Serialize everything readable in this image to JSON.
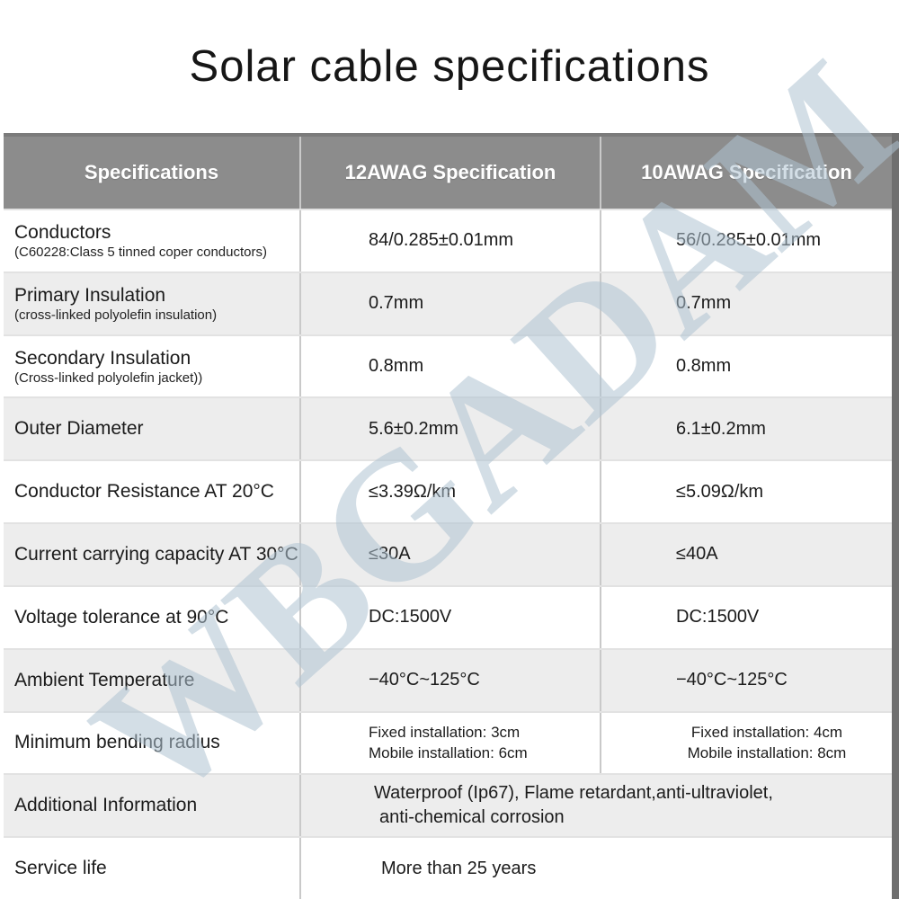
{
  "title": "Solar cable specifications",
  "watermark": "WBGADAM",
  "colors": {
    "header_bg": "#8c8c8c",
    "header_top": "#7b7b7b",
    "row_alt": "#ededed",
    "row_white": "#ffffff",
    "divider": "#c9c9c9",
    "row_line": "#e2e2e2",
    "edge_bar": "#6f6f6f",
    "text": "#1b1b1b",
    "header_text": "#ffffff"
  },
  "table": {
    "headers": [
      "Specifications",
      "12AWAG Specification",
      "10AWAG Specification"
    ],
    "rows": [
      {
        "label": "Conductors",
        "sublabel": "(C60228:Class 5 tinned coper conductors)",
        "awg12": "84/0.285±0.01mm",
        "awg10": "56/0.285±0.01mm"
      },
      {
        "label": "Primary Insulation",
        "sublabel": "(cross-linked polyolefin insulation)",
        "awg12": "0.7mm",
        "awg10": "0.7mm"
      },
      {
        "label": "Secondary Insulation",
        "sublabel": "(Cross-linked polyolefin jacket))",
        "awg12": "0.8mm",
        "awg10": "0.8mm"
      },
      {
        "label": "Outer Diameter",
        "awg12": "5.6±0.2mm",
        "awg10": "6.1±0.2mm"
      },
      {
        "label": "Conductor Resistance AT 20°C",
        "awg12": "≤3.39Ω/km",
        "awg10": "≤5.09Ω/km"
      },
      {
        "label": "Current carrying capacity AT 30°C",
        "awg12": "≤30A",
        "awg10": "≤40A"
      },
      {
        "label": "Voltage tolerance at 90°C",
        "awg12": "DC:1500V",
        "awg10": "DC:1500V"
      },
      {
        "label": "Ambient Temperature",
        "awg12": "−40°C~125°C",
        "awg10": "−40°C~125°C"
      },
      {
        "label": "Minimum bending radius",
        "awg12_lines": [
          "Fixed installation: 3cm",
          "Mobile installation: 6cm"
        ],
        "awg10_lines": [
          "Fixed installation: 4cm",
          "Mobile installation: 8cm"
        ]
      },
      {
        "label": "Additional Information",
        "merged_lines": [
          "Waterproof (Ip67), Flame retardant,anti-ultraviolet,",
          "anti-chemical corrosion"
        ]
      },
      {
        "label": "Service life",
        "merged": "More than 25 years"
      }
    ]
  }
}
